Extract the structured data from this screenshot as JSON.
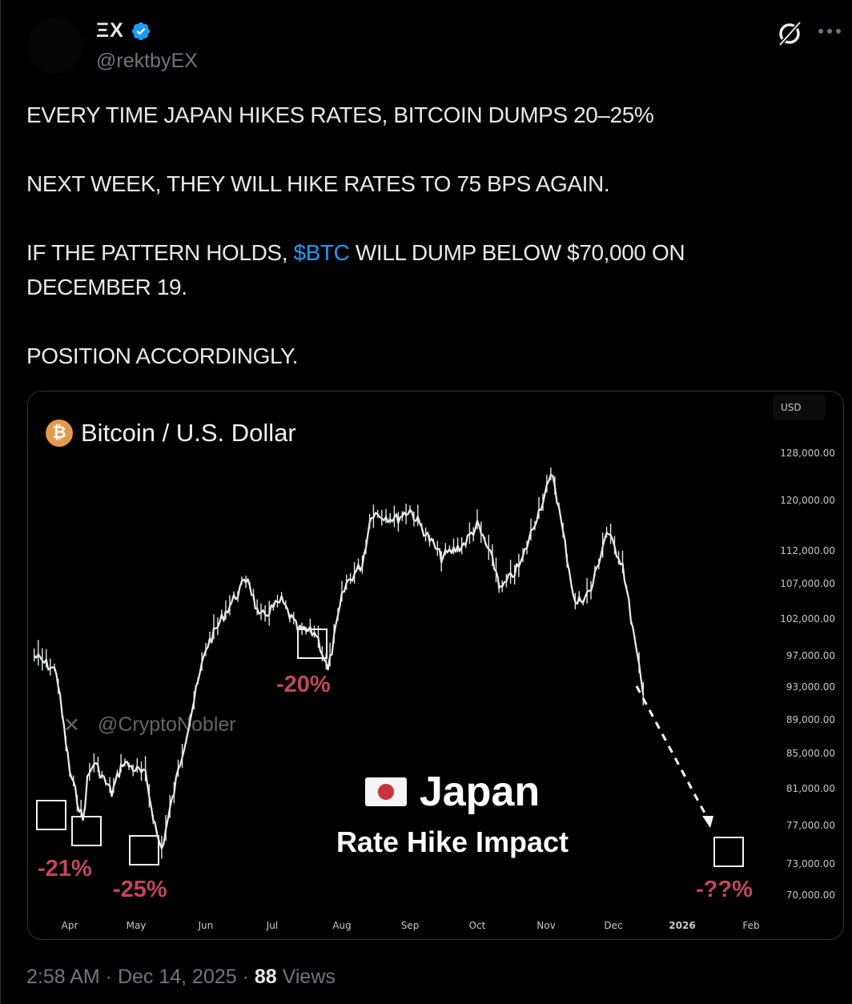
{
  "author": {
    "display_name": "ΞX",
    "handle": "@rektbyEX",
    "verified": true,
    "verified_color": "#1d9bf0"
  },
  "header_icons": [
    "grok-icon",
    "more-options-icon"
  ],
  "post": {
    "line1": "EVERY TIME JAPAN HIKES RATES, BITCOIN DUMPS 20–25%",
    "line2": "NEXT WEEK, THEY WILL HIKE RATES TO 75 BPS AGAIN.",
    "line3_prefix": "IF THE PATTERN HOLDS, ",
    "line3_cashtag": "$BTC",
    "line3_suffix": " WILL DUMP BELOW $70,000 ON DECEMBER 19.",
    "line4": "POSITION ACCORDINGLY."
  },
  "media": {
    "chart_title": "Bitcoin / U.S. Dollar",
    "currency_label": "USD",
    "watermark": "@CryptoNobler",
    "overlay_title": "Japan",
    "overlay_subtitle": "Rate Hike Impact",
    "annotations": [
      "-21%",
      "-25%",
      "-20%",
      "-??%"
    ]
  },
  "meta": {
    "time": "2:58 AM",
    "date": "Dec 14, 2025",
    "views_count": "88",
    "views_label": "Views"
  },
  "chart_data": {
    "type": "line",
    "title": "Bitcoin / U.S. Dollar",
    "xlabel": "",
    "ylabel": "USD",
    "y_scale": "log",
    "x_ticks": [
      "Apr",
      "May",
      "Jun",
      "Jul",
      "Aug",
      "Sep",
      "Oct",
      "Nov",
      "Dec",
      "2026",
      "Feb"
    ],
    "y_ticks": [
      "128,000.00",
      "120,000.00",
      "112,000.00",
      "107,000.00",
      "102,000.00",
      "97,000.00",
      "93,000.00",
      "89,000.00",
      "85,000.00",
      "81,000.00",
      "77,000.00",
      "73,000.00",
      "70,000.00"
    ],
    "ylim": [
      68000,
      132000
    ],
    "grid": false,
    "series": [
      {
        "name": "BTC/USD",
        "x": [
          "Mar 15",
          "Mar 25",
          "Apr 1",
          "Apr 7",
          "Apr 9",
          "Apr 12",
          "Apr 20",
          "Apr 25",
          "May 5",
          "May 10",
          "May 12",
          "May 20",
          "Jun 1",
          "Jun 10",
          "Jun 20",
          "Jun 25",
          "Jul 5",
          "Jul 12",
          "Jul 20",
          "Jul 25",
          "Aug 1",
          "Aug 3",
          "Aug 10",
          "Aug 14",
          "Aug 25",
          "Sep 1",
          "Sep 15",
          "Sep 25",
          "Oct 1",
          "Oct 6",
          "Oct 10",
          "Oct 11",
          "Oct 20",
          "Oct 27",
          "Nov 4",
          "Nov 14",
          "Nov 21",
          "Nov 28",
          "Dec 5",
          "Dec 14"
        ],
        "values": [
          97000,
          95000,
          83000,
          77500,
          82000,
          84000,
          80500,
          84000,
          82500,
          76000,
          74500,
          84000,
          98000,
          103000,
          108000,
          102000,
          104500,
          100500,
          100000,
          95000,
          105000,
          107000,
          110000,
          118000,
          117000,
          118500,
          111000,
          113000,
          116000,
          112000,
          108000,
          106000,
          110000,
          117500,
          124500,
          104000,
          106000,
          115000,
          110000,
          92000
        ]
      }
    ],
    "annotations": [
      {
        "label": "-21%",
        "near": "Apr (first drop)"
      },
      {
        "label": "-25%",
        "near": "May"
      },
      {
        "label": "-20%",
        "near": "late Jul"
      },
      {
        "label": "-??%",
        "near": "Jan 2026 (projected, dashed arrow)"
      }
    ],
    "overlay_text": [
      "Japan",
      "Rate Hike Impact"
    ]
  }
}
